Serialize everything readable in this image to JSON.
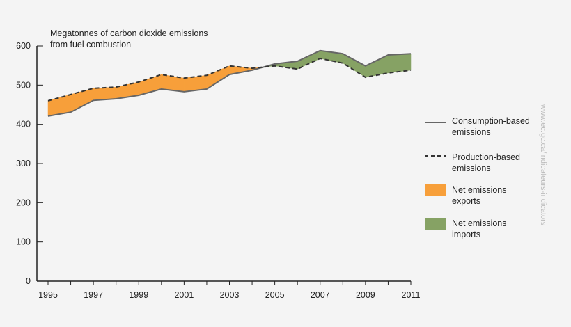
{
  "chart_data": {
    "type": "line",
    "title": "Megatonnes of carbon dioxide emissions from fuel combustion",
    "title_lines": [
      "Megatonnes of carbon dioxide emissions",
      "from fuel combustion"
    ],
    "x": [
      1995,
      1996,
      1997,
      1998,
      1999,
      2000,
      2001,
      2002,
      2003,
      2004,
      2005,
      2006,
      2007,
      2008,
      2009,
      2010,
      2011
    ],
    "xticks": [
      "1995",
      "1997",
      "1999",
      "2001",
      "2003",
      "2005",
      "2007",
      "2009",
      "2011"
    ],
    "yticks": [
      "0",
      "100",
      "200",
      "300",
      "400",
      "500",
      "600"
    ],
    "ylim": [
      0,
      600
    ],
    "grid": false,
    "legend_position": "right",
    "series": [
      {
        "name": "Consumption-based emissions",
        "style": "solid",
        "color": "#666666",
        "values": [
          421,
          431,
          461,
          465,
          474,
          490,
          483,
          490,
          527,
          538,
          554,
          561,
          588,
          580,
          549,
          577,
          580
        ]
      },
      {
        "name": "Production-based emissions",
        "style": "dashed",
        "color": "#333333",
        "values": [
          460,
          476,
          492,
          495,
          508,
          527,
          518,
          525,
          549,
          543,
          549,
          541,
          568,
          556,
          520,
          531,
          538
        ]
      }
    ],
    "areas": [
      {
        "name": "Net emissions exports",
        "color": "#f79f3a"
      },
      {
        "name": "Net emissions imports",
        "color": "#86a264"
      }
    ]
  },
  "legend": [
    {
      "lines": [
        "Consumption-based",
        "emissions"
      ]
    },
    {
      "lines": [
        "Production-based",
        "emissions"
      ]
    },
    {
      "lines": [
        "Net emissions",
        "exports"
      ]
    },
    {
      "lines": [
        "Net emissions",
        "imports"
      ]
    }
  ],
  "watermark": "www.ec.gc.ca/indicateurs-indicators"
}
